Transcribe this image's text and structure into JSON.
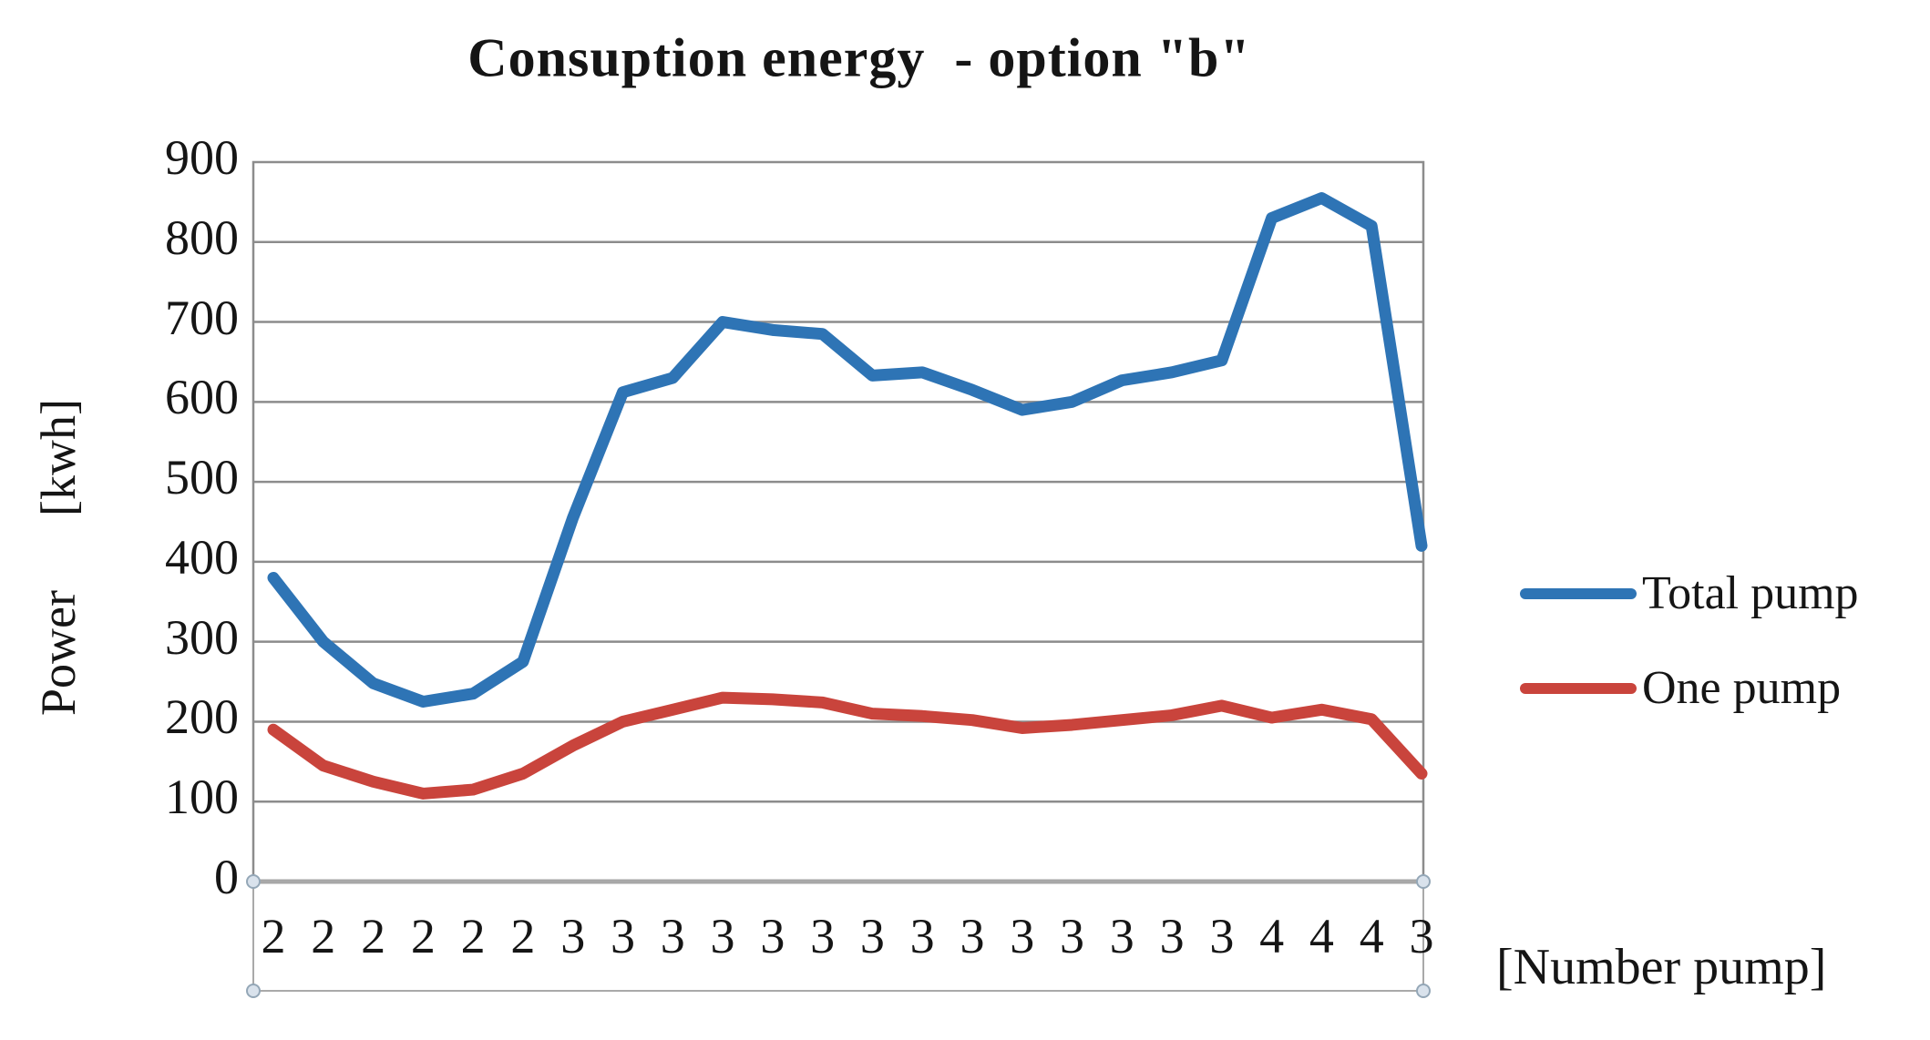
{
  "chart_data": {
    "type": "line",
    "title": "Consuption energy  - option \"b\"",
    "ylabel": "Power      [kwh]",
    "xlabel": "[Number pump]",
    "ylim": [
      0,
      900
    ],
    "yticks": [
      900,
      800,
      700,
      600,
      500,
      400,
      300,
      200,
      100,
      0
    ],
    "categories": [
      "2",
      "2",
      "2",
      "2",
      "2",
      "2",
      "3",
      "3",
      "3",
      "3",
      "3",
      "3",
      "3",
      "3",
      "3",
      "3",
      "3",
      "3",
      "3",
      "3",
      "4",
      "4",
      "4",
      "3"
    ],
    "grid": "horizontal",
    "legend_position": "right",
    "series": [
      {
        "name": "Total pump",
        "color": "#2E74B5",
        "values": [
          380,
          300,
          248,
          225,
          235,
          275,
          455,
          612,
          630,
          700,
          690,
          685,
          633,
          637,
          615,
          590,
          600,
          627,
          637,
          652,
          830,
          855,
          820,
          420
        ]
      },
      {
        "name": "One pump",
        "color": "#C9443C",
        "values": [
          190,
          145,
          125,
          110,
          115,
          135,
          170,
          200,
          215,
          230,
          228,
          224,
          210,
          207,
          202,
          192,
          196,
          202,
          208,
          220,
          205,
          215,
          203,
          135
        ]
      }
    ],
    "colors": {
      "gridline": "#8C8C8C",
      "plot_frame": "#8C8C8C",
      "axis_line": "#A6A6A6",
      "tick_strip_border": "#A9A9A9",
      "selection_handle_fill": "#D9E2EC",
      "selection_handle_stroke": "#94A7B7"
    }
  }
}
